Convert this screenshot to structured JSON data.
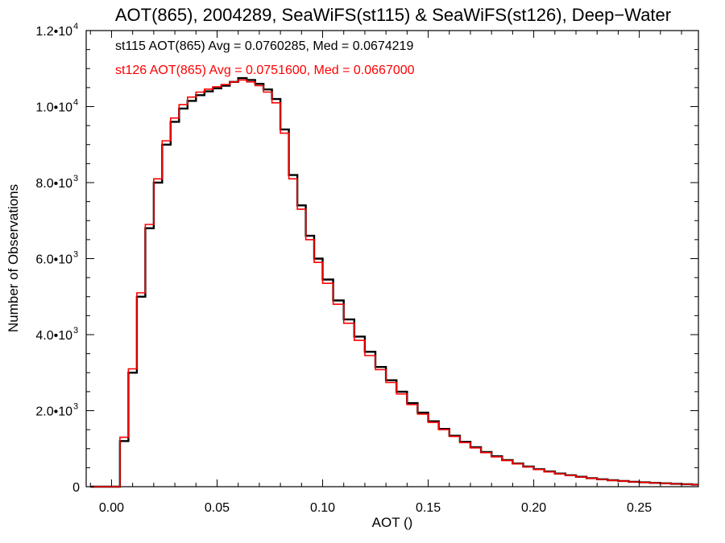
{
  "chart_data": {
    "type": "line",
    "title": "AOT(865), 2004289, SeaWiFS(st115) & SeaWiFS(st126), Deep−Water",
    "xlabel": "AOT ()",
    "ylabel": "Number of Observations",
    "xlim": [
      -0.012,
      0.278
    ],
    "ylim": [
      0,
      12000
    ],
    "x_ticks": [
      {
        "value": 0.0,
        "label": "0.00"
      },
      {
        "value": 0.05,
        "label": "0.05"
      },
      {
        "value": 0.1,
        "label": "0.10"
      },
      {
        "value": 0.15,
        "label": "0.15"
      },
      {
        "value": 0.2,
        "label": "0.20"
      },
      {
        "value": 0.25,
        "label": "0.25"
      }
    ],
    "y_ticks": [
      {
        "value": 0,
        "mant": "0",
        "exp": ""
      },
      {
        "value": 2000,
        "mant": "2.0•10",
        "exp": "3"
      },
      {
        "value": 4000,
        "mant": "4.0•10",
        "exp": "3"
      },
      {
        "value": 6000,
        "mant": "6.0•10",
        "exp": "3"
      },
      {
        "value": 8000,
        "mant": "8.0•10",
        "exp": "3"
      },
      {
        "value": 10000,
        "mant": "1.0•10",
        "exp": "4"
      },
      {
        "value": 12000,
        "mant": "1.2•10",
        "exp": "4"
      }
    ],
    "annotations": [
      "st115 AOT(865) Avg = 0.0760285, Med = 0.0674219",
      "st126 AOT(865) Avg = 0.0751600, Med = 0.0667000"
    ],
    "grid": false,
    "series": [
      {
        "color": "#000000",
        "x": [
          -0.01,
          0.0,
          0.004,
          0.008,
          0.012,
          0.016,
          0.02,
          0.024,
          0.028,
          0.032,
          0.036,
          0.04,
          0.044,
          0.048,
          0.052,
          0.056,
          0.06,
          0.064,
          0.068,
          0.072,
          0.076,
          0.08,
          0.084,
          0.088,
          0.092,
          0.096,
          0.1,
          0.105,
          0.11,
          0.115,
          0.12,
          0.125,
          0.13,
          0.135,
          0.14,
          0.145,
          0.15,
          0.155,
          0.16,
          0.165,
          0.17,
          0.175,
          0.18,
          0.185,
          0.19,
          0.195,
          0.2,
          0.205,
          0.21,
          0.215,
          0.22,
          0.225,
          0.23,
          0.235,
          0.24,
          0.245,
          0.25,
          0.255,
          0.26,
          0.265,
          0.27,
          0.275
        ],
        "values": [
          0,
          0,
          1200,
          3000,
          5000,
          6800,
          8000,
          9000,
          9600,
          9950,
          10150,
          10300,
          10400,
          10480,
          10550,
          10650,
          10750,
          10700,
          10600,
          10450,
          10200,
          9400,
          8200,
          7400,
          6600,
          6000,
          5450,
          4900,
          4400,
          3950,
          3550,
          3150,
          2800,
          2500,
          2200,
          1950,
          1720,
          1520,
          1340,
          1180,
          1040,
          910,
          800,
          700,
          610,
          530,
          460,
          400,
          345,
          300,
          260,
          225,
          195,
          170,
          150,
          130,
          115,
          100,
          88,
          77,
          65,
          55
        ]
      },
      {
        "color": "#ff0000",
        "x": [
          -0.01,
          0.0,
          0.004,
          0.008,
          0.012,
          0.016,
          0.02,
          0.024,
          0.028,
          0.032,
          0.036,
          0.04,
          0.044,
          0.048,
          0.052,
          0.056,
          0.06,
          0.064,
          0.068,
          0.072,
          0.076,
          0.08,
          0.084,
          0.088,
          0.092,
          0.096,
          0.1,
          0.105,
          0.11,
          0.115,
          0.12,
          0.125,
          0.13,
          0.135,
          0.14,
          0.145,
          0.15,
          0.155,
          0.16,
          0.165,
          0.17,
          0.175,
          0.18,
          0.185,
          0.19,
          0.195,
          0.2,
          0.205,
          0.21,
          0.215,
          0.22,
          0.225,
          0.23,
          0.235,
          0.24,
          0.245,
          0.25,
          0.255,
          0.26,
          0.265,
          0.27,
          0.275
        ],
        "values": [
          0,
          0,
          1300,
          3100,
          5100,
          6900,
          8100,
          9100,
          9700,
          10050,
          10250,
          10380,
          10460,
          10520,
          10580,
          10650,
          10700,
          10650,
          10550,
          10380,
          10100,
          9300,
          8100,
          7300,
          6500,
          5900,
          5350,
          4800,
          4300,
          3850,
          3450,
          3080,
          2740,
          2440,
          2160,
          1910,
          1690,
          1500,
          1320,
          1160,
          1020,
          895,
          785,
          690,
          600,
          520,
          450,
          390,
          338,
          292,
          254,
          220,
          190,
          166,
          146,
          127,
          112,
          98,
          86,
          75,
          64,
          54
        ]
      }
    ]
  }
}
